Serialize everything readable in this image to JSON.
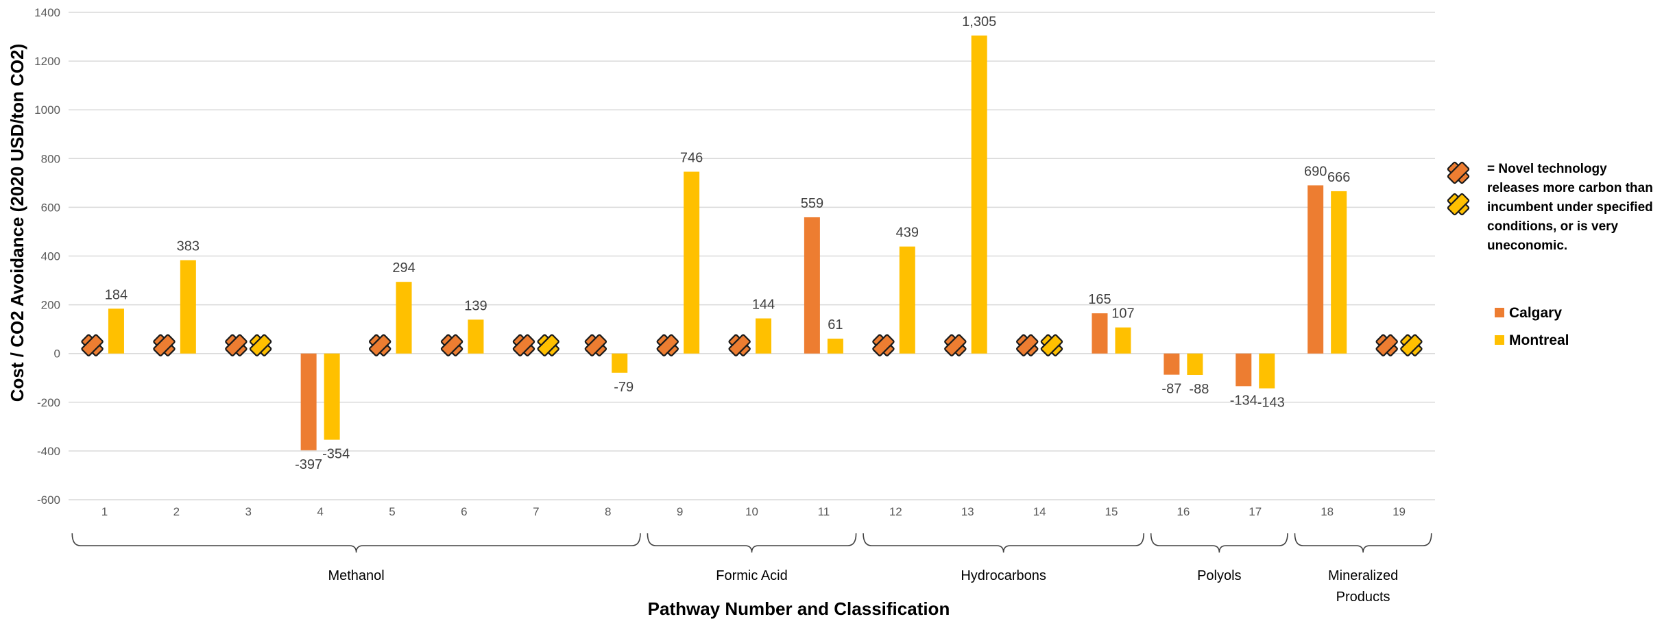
{
  "chart_data": {
    "type": "bar",
    "title": "",
    "xlabel": "Pathway Number and Classification",
    "ylabel": "Cost / CO2 Avoidance (2020 USD/ton CO2)",
    "ylim": [
      -600,
      1400
    ],
    "yticks": [
      -600,
      -400,
      -200,
      0,
      200,
      400,
      600,
      800,
      1000,
      1200,
      1400
    ],
    "grid": true,
    "legend_position": "right",
    "categories": [
      "1",
      "2",
      "3",
      "4",
      "5",
      "6",
      "7",
      "8",
      "9",
      "10",
      "11",
      "12",
      "13",
      "14",
      "15",
      "16",
      "17",
      "18",
      "19"
    ],
    "series": [
      {
        "name": "Calgary",
        "color": "#ED7D31",
        "values": [
          null,
          null,
          null,
          -397,
          null,
          null,
          null,
          null,
          null,
          null,
          559,
          null,
          null,
          null,
          165,
          -87,
          -134,
          690,
          null
        ],
        "labels": [
          "",
          "",
          "",
          "-397",
          "",
          "",
          "",
          "",
          "",
          "",
          "559",
          "",
          "",
          "",
          "165",
          "-87",
          "-134",
          "690",
          ""
        ]
      },
      {
        "name": "Montreal",
        "color": "#FFC000",
        "values": [
          184,
          383,
          null,
          -354,
          294,
          139,
          null,
          -79,
          746,
          144,
          61,
          439,
          1305,
          null,
          107,
          -88,
          -143,
          666,
          null
        ],
        "labels": [
          "184",
          "383",
          "",
          "-354",
          "294",
          "139",
          "",
          "-79",
          "746",
          "144",
          "61",
          "439",
          "1,305",
          "",
          "107",
          "-88",
          "-143",
          "666",
          ""
        ]
      }
    ],
    "x_markers": [
      {
        "category": "1",
        "series": "Calgary"
      },
      {
        "category": "2",
        "series": "Calgary"
      },
      {
        "category": "3",
        "series": "Calgary"
      },
      {
        "category": "3",
        "series": "Montreal"
      },
      {
        "category": "5",
        "series": "Calgary"
      },
      {
        "category": "6",
        "series": "Calgary"
      },
      {
        "category": "7",
        "series": "Calgary"
      },
      {
        "category": "7",
        "series": "Montreal"
      },
      {
        "category": "8",
        "series": "Calgary"
      },
      {
        "category": "9",
        "series": "Calgary"
      },
      {
        "category": "10",
        "series": "Calgary"
      },
      {
        "category": "12",
        "series": "Calgary"
      },
      {
        "category": "13",
        "series": "Calgary"
      },
      {
        "category": "14",
        "series": "Calgary"
      },
      {
        "category": "14",
        "series": "Montreal"
      },
      {
        "category": "19",
        "series": "Calgary"
      },
      {
        "category": "19",
        "series": "Montreal"
      }
    ],
    "groups": [
      {
        "label": "Methanol",
        "from": "1",
        "to": "8"
      },
      {
        "label": "Formic Acid",
        "from": "9",
        "to": "11"
      },
      {
        "label": "Hydrocarbons",
        "from": "12",
        "to": "15"
      },
      {
        "label": "Polyols",
        "from": "16",
        "to": "17"
      },
      {
        "label": "Mineralized Products",
        "label_lines": [
          "Mineralized",
          "Products"
        ],
        "from": "18",
        "to": "19"
      }
    ],
    "marker_note_lines": [
      "= Novel technology",
      "releases more carbon than",
      "incumbent under specified",
      "conditions, or is very",
      "uneconomic."
    ]
  }
}
